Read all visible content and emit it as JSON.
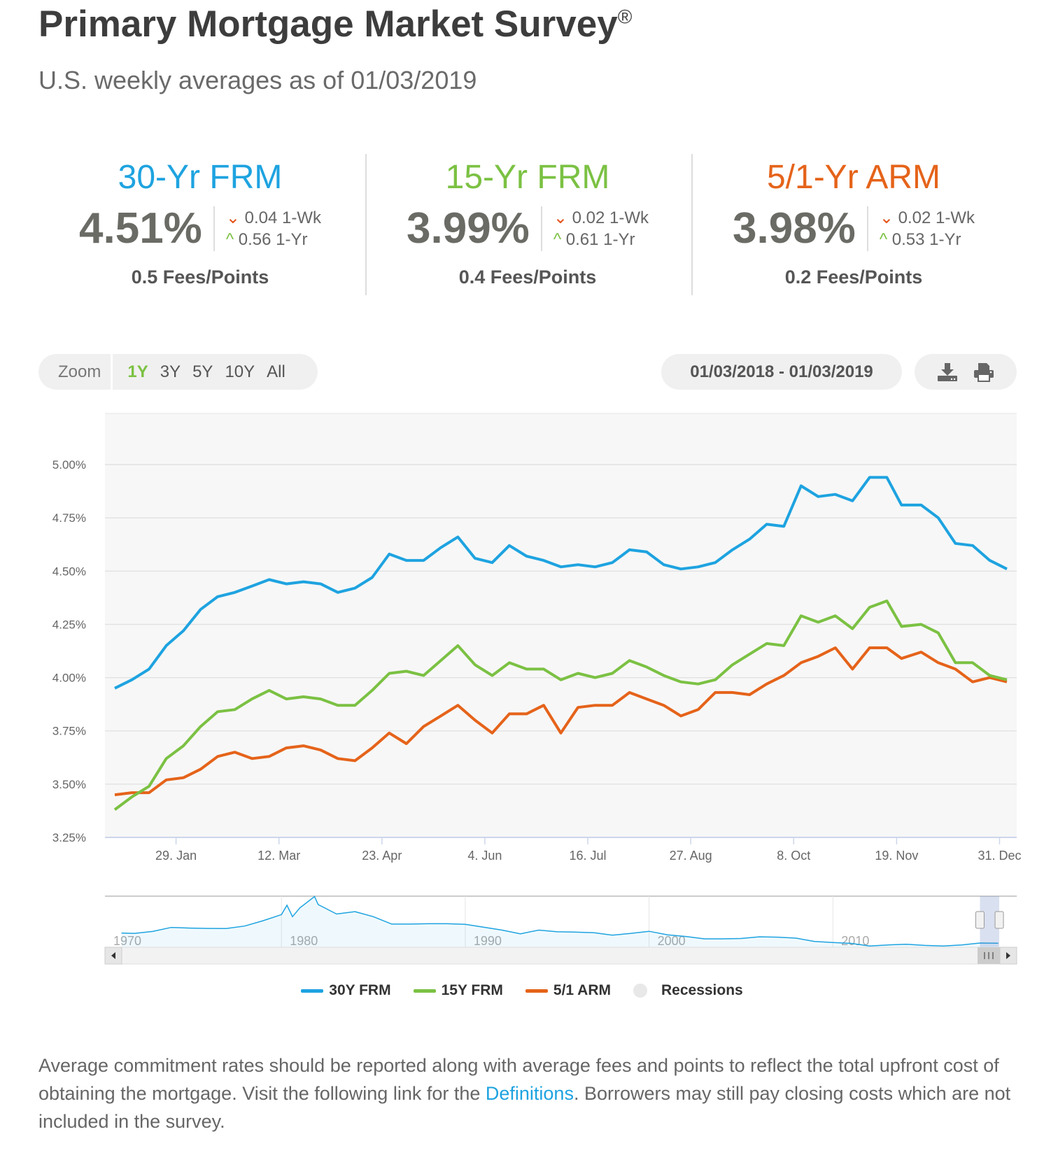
{
  "header": {
    "title": "Primary Mortgage Market Survey",
    "title_mark": "®",
    "subtitle": "U.S. weekly averages as of 01/03/2019"
  },
  "stats": [
    {
      "name": "30-Yr FRM",
      "color": "#1ea3e0",
      "rate": "4.51%",
      "week_change": "0.04 1-Wk",
      "week_dir": "down",
      "year_change": "0.56 1-Yr",
      "year_dir": "up",
      "fees": "0.5 Fees/Points"
    },
    {
      "name": "15-Yr FRM",
      "color": "#7bc143",
      "rate": "3.99%",
      "week_change": "0.02 1-Wk",
      "week_dir": "down",
      "year_change": "0.61 1-Yr",
      "year_dir": "up",
      "fees": "0.4 Fees/Points"
    },
    {
      "name": "5/1-Yr ARM",
      "color": "#e5631a",
      "rate": "3.98%",
      "week_change": "0.02 1-Wk",
      "week_dir": "down",
      "year_change": "0.53 1-Yr",
      "year_dir": "up",
      "fees": "0.2 Fees/Points"
    }
  ],
  "toolbar": {
    "zoom_label": "Zoom",
    "zoom_options": [
      "1Y",
      "3Y",
      "5Y",
      "10Y",
      "All"
    ],
    "active_zoom": "1Y",
    "date_range": "01/03/2018 - 01/03/2019",
    "icons": [
      "download-icon",
      "print-icon"
    ]
  },
  "chart_data": {
    "type": "line",
    "xlim": [
      "2017-12-31",
      "2019-01-07"
    ],
    "ylim": [
      3.25,
      5.24
    ],
    "grid": true,
    "yticks": [
      "3.25%",
      "3.50%",
      "3.75%",
      "4.00%",
      "4.25%",
      "4.50%",
      "4.75%",
      "5.00%"
    ],
    "ytick_values": [
      3.25,
      3.5,
      3.75,
      4.0,
      4.25,
      4.5,
      4.75,
      5.0
    ],
    "xticks": [
      "29. Jan",
      "12. Mar",
      "23. Apr",
      "4. Jun",
      "16. Jul",
      "27. Aug",
      "8. Oct",
      "19. Nov",
      "31. Dec"
    ],
    "xtick_dates": [
      "2018-01-29",
      "2018-03-12",
      "2018-04-23",
      "2018-06-04",
      "2018-07-16",
      "2018-08-27",
      "2018-10-08",
      "2018-11-19",
      "2018-12-31"
    ],
    "x": [
      "2018-01-04",
      "2018-01-11",
      "2018-01-18",
      "2018-01-25",
      "2018-02-01",
      "2018-02-08",
      "2018-02-15",
      "2018-02-22",
      "2018-03-01",
      "2018-03-08",
      "2018-03-15",
      "2018-03-22",
      "2018-03-29",
      "2018-04-05",
      "2018-04-12",
      "2018-04-19",
      "2018-04-26",
      "2018-05-03",
      "2018-05-10",
      "2018-05-17",
      "2018-05-24",
      "2018-05-31",
      "2018-06-07",
      "2018-06-14",
      "2018-06-21",
      "2018-06-28",
      "2018-07-05",
      "2018-07-12",
      "2018-07-19",
      "2018-07-26",
      "2018-08-02",
      "2018-08-09",
      "2018-08-16",
      "2018-08-23",
      "2018-08-30",
      "2018-09-06",
      "2018-09-13",
      "2018-09-20",
      "2018-09-27",
      "2018-10-04",
      "2018-10-11",
      "2018-10-18",
      "2018-10-25",
      "2018-11-01",
      "2018-11-08",
      "2018-11-15",
      "2018-11-21",
      "2018-11-29",
      "2018-12-06",
      "2018-12-13",
      "2018-12-20",
      "2018-12-27",
      "2019-01-03"
    ],
    "series": [
      {
        "name": "30Y FRM",
        "color": "#1ea3e0",
        "values": [
          3.95,
          3.99,
          4.04,
          4.15,
          4.22,
          4.32,
          4.38,
          4.4,
          4.43,
          4.46,
          4.44,
          4.45,
          4.44,
          4.4,
          4.42,
          4.47,
          4.58,
          4.55,
          4.55,
          4.61,
          4.66,
          4.56,
          4.54,
          4.62,
          4.57,
          4.55,
          4.52,
          4.53,
          4.52,
          4.54,
          4.6,
          4.59,
          4.53,
          4.51,
          4.52,
          4.54,
          4.6,
          4.65,
          4.72,
          4.71,
          4.9,
          4.85,
          4.86,
          4.83,
          4.94,
          4.94,
          4.81,
          4.81,
          4.75,
          4.63,
          4.62,
          4.55,
          4.51
        ]
      },
      {
        "name": "15Y FRM",
        "color": "#7bc143",
        "values": [
          3.38,
          3.44,
          3.49,
          3.62,
          3.68,
          3.77,
          3.84,
          3.85,
          3.9,
          3.94,
          3.9,
          3.91,
          3.9,
          3.87,
          3.87,
          3.94,
          4.02,
          4.03,
          4.01,
          4.08,
          4.15,
          4.06,
          4.01,
          4.07,
          4.04,
          4.04,
          3.99,
          4.02,
          4.0,
          4.02,
          4.08,
          4.05,
          4.01,
          3.98,
          3.97,
          3.99,
          4.06,
          4.11,
          4.16,
          4.15,
          4.29,
          4.26,
          4.29,
          4.23,
          4.33,
          4.36,
          4.24,
          4.25,
          4.21,
          4.07,
          4.07,
          4.01,
          3.99
        ]
      },
      {
        "name": "5/1 ARM",
        "color": "#e5631a",
        "values": [
          3.45,
          3.46,
          3.46,
          3.52,
          3.53,
          3.57,
          3.63,
          3.65,
          3.62,
          3.63,
          3.67,
          3.68,
          3.66,
          3.62,
          3.61,
          3.67,
          3.74,
          3.69,
          3.77,
          3.82,
          3.87,
          3.8,
          3.74,
          3.83,
          3.83,
          3.87,
          3.74,
          3.86,
          3.87,
          3.87,
          3.93,
          3.9,
          3.87,
          3.82,
          3.85,
          3.93,
          3.93,
          3.92,
          3.97,
          4.01,
          4.07,
          4.1,
          4.14,
          4.04,
          4.14,
          4.14,
          4.09,
          4.12,
          4.07,
          4.04,
          3.98,
          4.0,
          3.98
        ]
      }
    ],
    "legend": {
      "placement": "bottom",
      "items": [
        "30Y FRM",
        "15Y FRM",
        "5/1 ARM",
        "Recessions"
      ],
      "recessions_color": "#e8e8e8"
    },
    "navigator": {
      "xticks": [
        "1970",
        "1980",
        "1990",
        "2000",
        "2010"
      ],
      "xlim": [
        1970.4,
        2020
      ],
      "ylim": [
        3.3,
        18.5
      ],
      "years": [
        1971.3,
        1972,
        1973,
        1974,
        1975,
        1976,
        1977,
        1978,
        1979,
        1980,
        1980.3,
        1980.6,
        1981,
        1981.8,
        1982,
        1983,
        1984,
        1985,
        1986,
        1987,
        1988,
        1989,
        1990,
        1991,
        1992,
        1993,
        1994,
        1995,
        1996,
        1997,
        1998,
        1999,
        2000,
        2001,
        2002,
        2003,
        2004,
        2005,
        2006,
        2007,
        2008,
        2009,
        2010,
        2011,
        2012,
        2013,
        2014,
        2015,
        2016,
        2017,
        2018,
        2019
      ],
      "values": [
        7.5,
        7.4,
        8.0,
        9.2,
        9.0,
        8.9,
        8.85,
        9.6,
        11.2,
        13.0,
        15.8,
        12.4,
        15.0,
        18.4,
        16.0,
        13.2,
        13.9,
        12.4,
        10.2,
        10.2,
        10.3,
        10.3,
        10.1,
        9.25,
        8.4,
        7.3,
        8.4,
        7.9,
        7.8,
        7.6,
        6.9,
        7.4,
        8.05,
        7.0,
        6.5,
        5.8,
        5.8,
        5.9,
        6.4,
        6.3,
        6.0,
        5.0,
        4.7,
        4.45,
        3.66,
        3.98,
        4.17,
        3.85,
        3.65,
        3.99,
        4.54,
        4.51
      ]
    }
  },
  "footer": {
    "text_before": "Average commitment rates should be reported along with average fees and points to reflect the total upfront cost of obtaining the mortgage. Visit the following link for the ",
    "link": "Definitions",
    "text_after": ". Borrowers may still pay closing costs which are not included in the survey."
  }
}
